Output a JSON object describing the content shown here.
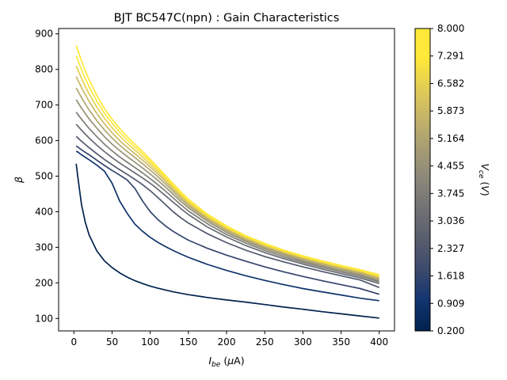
{
  "chart_data": {
    "type": "line",
    "title": "BJT BC547C(npn) : Gain  Characteristics",
    "xlabel": "I_be (μA)",
    "ylabel": "β",
    "xlim": [
      -20,
      420
    ],
    "ylim": [
      65,
      915
    ],
    "xticks": [
      0,
      50,
      100,
      150,
      200,
      250,
      300,
      350,
      400
    ],
    "yticks": [
      100,
      200,
      300,
      400,
      500,
      600,
      700,
      800,
      900
    ],
    "grid": false,
    "x": [
      3,
      5,
      10,
      15,
      20,
      30,
      40,
      50,
      60,
      70,
      80,
      90,
      100,
      110,
      120,
      130,
      140,
      150,
      175,
      200,
      225,
      250,
      275,
      300,
      325,
      350,
      375,
      400
    ],
    "colorbar": {
      "label": "V_ce (V)",
      "colormap": "cividis",
      "min": 0.2,
      "max": 8.0,
      "ticks": [
        "0.200",
        "0.909",
        "1.618",
        "2.327",
        "3.036",
        "3.745",
        "4.455",
        "5.164",
        "5.873",
        "6.582",
        "7.291",
        "8.000"
      ]
    },
    "series": [
      {
        "vce": 0.2,
        "values": [
          535,
          500,
          420,
          370,
          335,
          290,
          262,
          243,
          228,
          216,
          206,
          198,
          191,
          185,
          180,
          175,
          171,
          167,
          159,
          152,
          146,
          139,
          132,
          126,
          119,
          113,
          107,
          101
        ]
      },
      {
        "vce": 0.909,
        "values": [
          570,
          568,
          560,
          553,
          546,
          531,
          514,
          480,
          430,
          395,
          365,
          345,
          328,
          314,
          302,
          291,
          281,
          272,
          252,
          235,
          220,
          207,
          195,
          184,
          175,
          166,
          157,
          150
        ]
      },
      {
        "vce": 1.618,
        "values": [
          585,
          582,
          574,
          567,
          560,
          545,
          530,
          516,
          503,
          489,
          465,
          430,
          400,
          378,
          360,
          345,
          332,
          320,
          297,
          278,
          261,
          245,
          231,
          218,
          206,
          195,
          184,
          168
        ]
      },
      {
        "vce": 2.327,
        "values": [
          612,
          608,
          598,
          589,
          580,
          563,
          547,
          532,
          518,
          505,
          491,
          476,
          459,
          440,
          420,
          400,
          383,
          368,
          338,
          313,
          292,
          274,
          259,
          245,
          232,
          220,
          208,
          187
        ]
      },
      {
        "vce": 3.036,
        "values": [
          646,
          641,
          629,
          618,
          607,
          587,
          569,
          552,
          537,
          523,
          509,
          495,
          480,
          463,
          445,
          427,
          409,
          392,
          357,
          329,
          305,
          285,
          268,
          253,
          239,
          226,
          214,
          198
        ]
      },
      {
        "vce": 3.745,
        "values": [
          680,
          674,
          660,
          647,
          634,
          611,
          590,
          571,
          554,
          539,
          524,
          509,
          493,
          476,
          458,
          439,
          420,
          402,
          366,
          336,
          312,
          291,
          273,
          258,
          244,
          231,
          219,
          203
        ]
      },
      {
        "vce": 4.455,
        "values": [
          715,
          708,
          691,
          676,
          661,
          635,
          611,
          590,
          572,
          555,
          539,
          523,
          506,
          488,
          469,
          449,
          429,
          411,
          373,
          342,
          317,
          296,
          278,
          262,
          248,
          235,
          223,
          207
        ]
      },
      {
        "vce": 5.164,
        "values": [
          748,
          740,
          721,
          703,
          686,
          656,
          630,
          607,
          587,
          569,
          552,
          535,
          517,
          498,
          478,
          457,
          436,
          417,
          378,
          347,
          321,
          300,
          282,
          266,
          252,
          239,
          227,
          211
        ]
      },
      {
        "vce": 5.873,
        "values": [
          780,
          771,
          749,
          729,
          710,
          676,
          647,
          622,
          600,
          581,
          563,
          545,
          526,
          506,
          485,
          463,
          442,
          422,
          382,
          351,
          325,
          303,
          285,
          269,
          255,
          242,
          230,
          214
        ]
      },
      {
        "vce": 6.582,
        "values": [
          810,
          800,
          775,
          752,
          731,
          694,
          663,
          636,
          613,
          592,
          573,
          554,
          534,
          513,
          491,
          469,
          447,
          427,
          386,
          354,
          328,
          306,
          288,
          272,
          258,
          245,
          233,
          217
        ]
      },
      {
        "vce": 7.291,
        "values": [
          838,
          827,
          799,
          774,
          751,
          711,
          677,
          649,
          624,
          602,
          582,
          562,
          541,
          519,
          497,
          474,
          452,
          431,
          390,
          357,
          331,
          309,
          290,
          274,
          260,
          247,
          235,
          220
        ]
      },
      {
        "vce": 8.0,
        "values": [
          868,
          855,
          824,
          796,
          771,
          727,
          690,
          660,
          634,
          611,
          590,
          569,
          547,
          525,
          502,
          479,
          456,
          435,
          393,
          360,
          333,
          311,
          292,
          276,
          262,
          249,
          237,
          223
        ]
      }
    ]
  }
}
